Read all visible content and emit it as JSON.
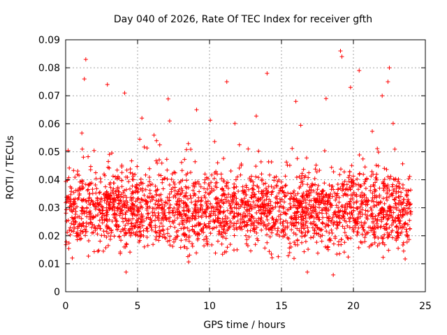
{
  "chart_data": {
    "type": "scatter",
    "title": "Day 040 of 2026, Rate Of TEC Index for receiver gfth",
    "xlabel": "GPS time / hours",
    "ylabel": "ROTI / TECUs",
    "xlim": [
      0,
      25
    ],
    "ylim": [
      0,
      0.09
    ],
    "xticks": [
      0,
      5,
      10,
      15,
      20,
      25
    ],
    "yticks": [
      0,
      0.01,
      0.02,
      0.03,
      0.04,
      0.05,
      0.06,
      0.07,
      0.08,
      0.09
    ],
    "ytick_labels": [
      "0",
      "0.01",
      "0.02",
      "0.03",
      "0.04",
      "0.05",
      "0.06",
      "0.07",
      "0.08",
      "0.09"
    ],
    "grid": true,
    "marker": "+",
    "color": "#ff0000",
    "series_description": "Dense ROTI samples spanning 0 to 24 h, mostly between 0.01 and 0.05 TECUs with occasional spikes",
    "x_range_data": [
      0,
      24
    ],
    "typical_band": [
      0.015,
      0.04
    ],
    "outliers": [
      {
        "x": 1.4,
        "y": 0.083
      },
      {
        "x": 1.3,
        "y": 0.076
      },
      {
        "x": 2.9,
        "y": 0.074
      },
      {
        "x": 4.1,
        "y": 0.071
      },
      {
        "x": 11.2,
        "y": 0.075
      },
      {
        "x": 14.0,
        "y": 0.078
      },
      {
        "x": 19.1,
        "y": 0.086
      },
      {
        "x": 19.2,
        "y": 0.084
      },
      {
        "x": 20.4,
        "y": 0.079
      },
      {
        "x": 22.5,
        "y": 0.08
      },
      {
        "x": 22.4,
        "y": 0.075
      },
      {
        "x": 19.8,
        "y": 0.073
      },
      {
        "x": 16.0,
        "y": 0.068
      },
      {
        "x": 18.1,
        "y": 0.069
      },
      {
        "x": 9.1,
        "y": 0.065
      },
      {
        "x": 5.3,
        "y": 0.062
      },
      {
        "x": 22.0,
        "y": 0.07
      },
      {
        "x": 4.2,
        "y": 0.007
      },
      {
        "x": 18.6,
        "y": 0.006
      },
      {
        "x": 16.8,
        "y": 0.007
      }
    ]
  }
}
